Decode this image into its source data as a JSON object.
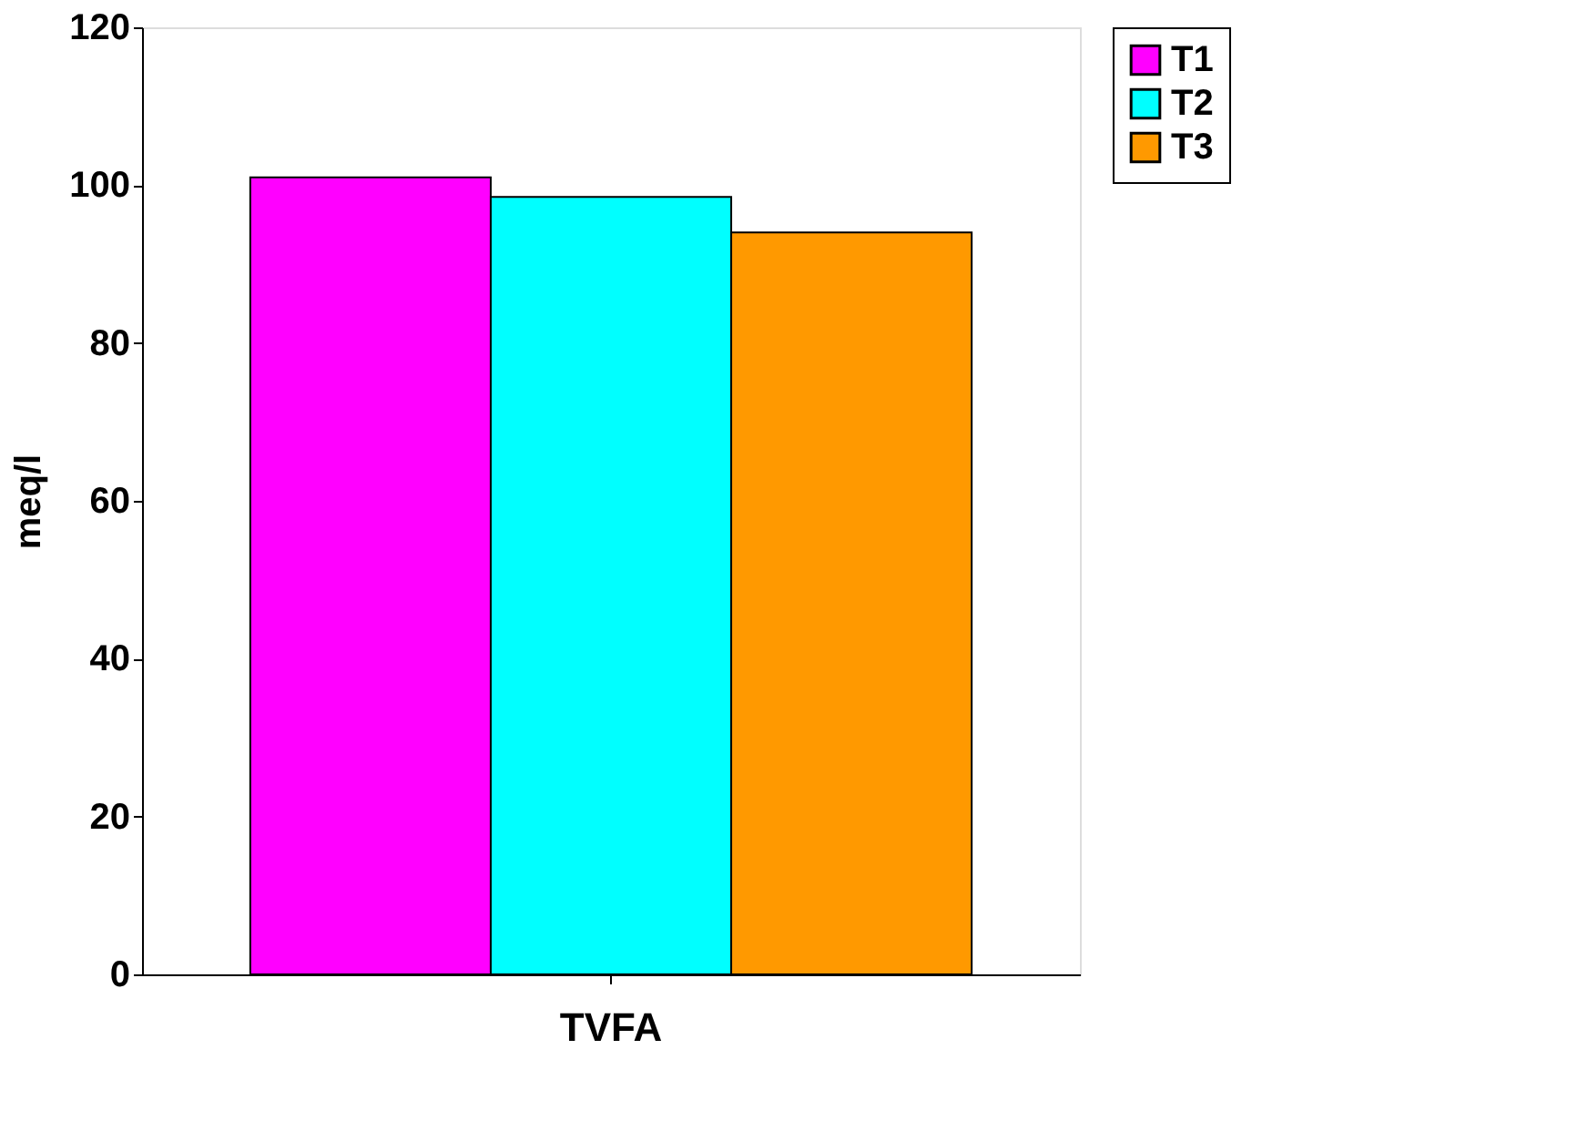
{
  "chart_data": {
    "type": "bar",
    "ylabel": "meq/l",
    "categories": [
      "TVFA"
    ],
    "series": [
      {
        "name": "T1",
        "color": "#ff00ff",
        "values": [
          101
        ]
      },
      {
        "name": "T2",
        "color": "#00ffff",
        "values": [
          98.5
        ]
      },
      {
        "name": "T3",
        "color": "#ff9900",
        "values": [
          94
        ]
      }
    ],
    "ylim": [
      0,
      120
    ],
    "yticks": [
      0,
      20,
      40,
      60,
      80,
      100,
      120
    ],
    "grid": false,
    "legend": "right"
  }
}
